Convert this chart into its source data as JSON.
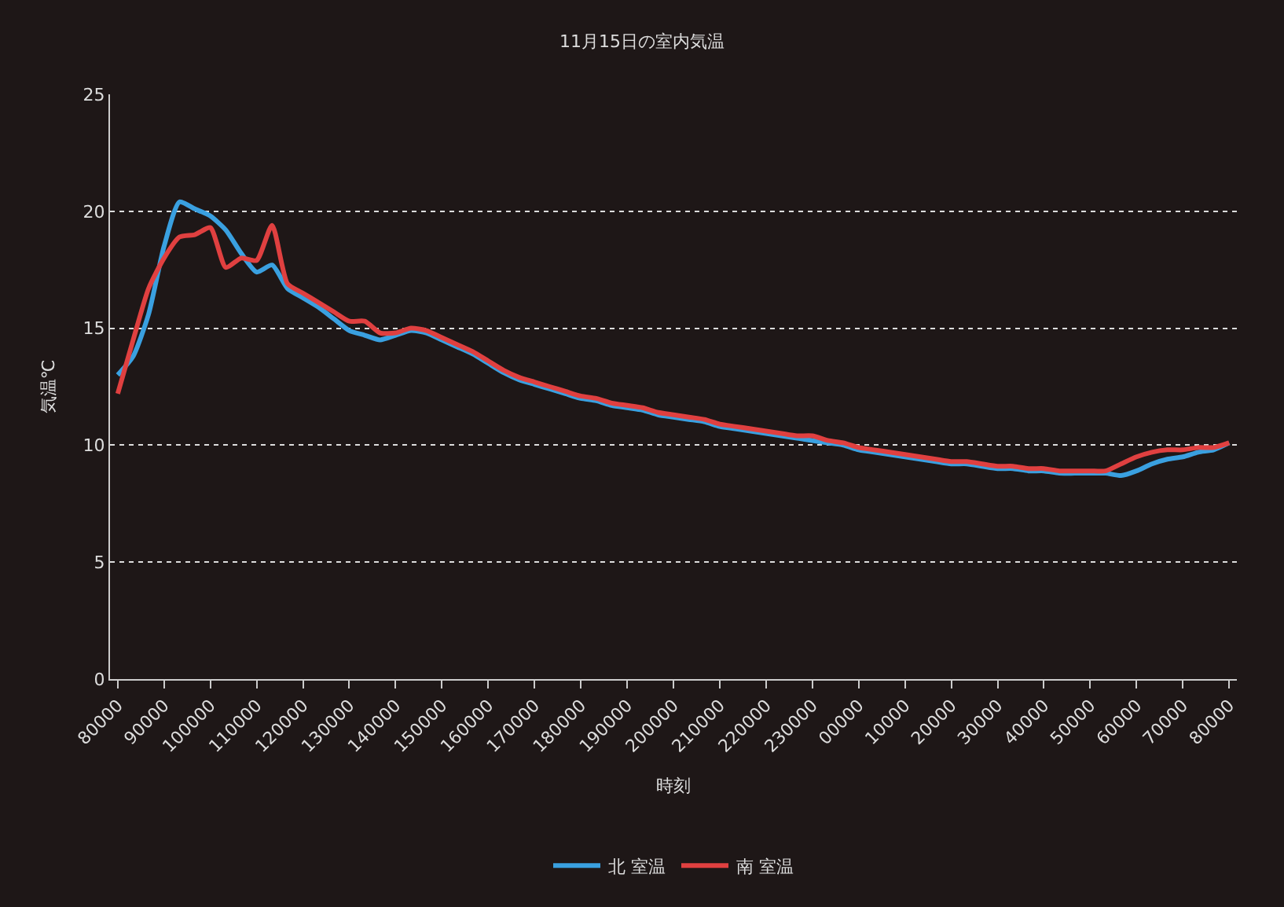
{
  "chart_data": {
    "type": "line",
    "title": "11月15日の室内気温",
    "xlabel": "時刻",
    "ylabel": "気温℃",
    "categories": [
      "80000",
      null,
      null,
      "90000",
      null,
      null,
      "100000",
      null,
      null,
      "110000",
      null,
      null,
      "120000",
      null,
      null,
      "130000",
      null,
      null,
      "140000",
      null,
      null,
      "150000",
      null,
      null,
      "160000",
      null,
      null,
      "170000",
      null,
      null,
      "180000",
      null,
      null,
      "190000",
      null,
      null,
      "200000",
      null,
      null,
      "210000",
      null,
      null,
      "220000",
      null,
      null,
      "230000",
      null,
      null,
      "00000",
      null,
      null,
      "10000",
      null,
      null,
      "20000",
      null,
      null,
      "30000",
      null,
      null,
      "40000",
      null,
      null,
      "50000",
      null,
      null,
      "60000",
      null,
      null,
      "70000",
      null,
      null,
      "80000"
    ],
    "ylim": [
      0,
      25
    ],
    "yticks": [
      0,
      5,
      10,
      15,
      20,
      25
    ],
    "grid": "y",
    "legend": "bottom",
    "line_style": "solid",
    "series": [
      {
        "name": "北 室温",
        "color": "#3aa0e0",
        "values": [
          13.0,
          13.8,
          15.6,
          18.5,
          20.4,
          20.1,
          19.8,
          19.2,
          18.2,
          17.4,
          17.7,
          16.7,
          16.3,
          15.9,
          15.4,
          14.9,
          14.7,
          14.5,
          14.7,
          14.9,
          14.8,
          14.5,
          14.2,
          13.9,
          13.5,
          13.1,
          12.8,
          12.6,
          12.4,
          12.2,
          12.0,
          11.9,
          11.7,
          11.6,
          11.5,
          11.3,
          11.2,
          11.1,
          11.0,
          10.8,
          10.7,
          10.6,
          10.5,
          10.4,
          10.3,
          10.2,
          10.1,
          10.0,
          9.8,
          9.7,
          9.6,
          9.5,
          9.4,
          9.3,
          9.2,
          9.2,
          9.1,
          9.0,
          9.0,
          8.9,
          8.9,
          8.8,
          8.8,
          8.8,
          8.8,
          8.7,
          8.9,
          9.2,
          9.4,
          9.5,
          9.7,
          9.8,
          10.1
        ]
      },
      {
        "name": "南 室温",
        "color": "#e04040",
        "values": [
          12.2,
          14.5,
          16.7,
          18.0,
          18.9,
          19.0,
          19.3,
          17.6,
          18.0,
          17.9,
          19.4,
          16.9,
          16.5,
          16.1,
          15.7,
          15.3,
          15.3,
          14.8,
          14.8,
          15.0,
          14.9,
          14.6,
          14.3,
          14.0,
          13.6,
          13.2,
          12.9,
          12.7,
          12.5,
          12.3,
          12.1,
          12.0,
          11.8,
          11.7,
          11.6,
          11.4,
          11.3,
          11.2,
          11.1,
          10.9,
          10.8,
          10.7,
          10.6,
          10.5,
          10.4,
          10.4,
          10.2,
          10.1,
          9.9,
          9.8,
          9.7,
          9.6,
          9.5,
          9.4,
          9.3,
          9.3,
          9.2,
          9.1,
          9.1,
          9.0,
          9.0,
          8.9,
          8.9,
          8.9,
          8.9,
          9.2,
          9.5,
          9.7,
          9.8,
          9.8,
          9.9,
          9.9,
          10.1
        ]
      }
    ]
  }
}
